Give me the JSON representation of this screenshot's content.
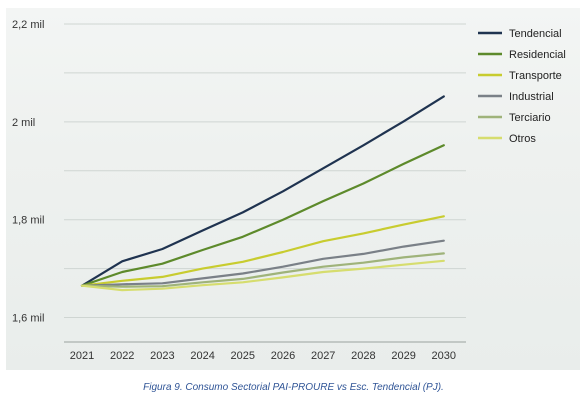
{
  "caption": "Figura 9. Consumo Sectorial PAI-PROURE vs Esc. Tendencial (PJ).",
  "chart_data": {
    "type": "line",
    "title": "",
    "xlabel": "",
    "ylabel": "",
    "x": [
      "2021",
      "2022",
      "2023",
      "2024",
      "2025",
      "2026",
      "2027",
      "2028",
      "2029",
      "2030"
    ],
    "ylim": [
      1550,
      2200
    ],
    "yticks": [
      {
        "value": 1600,
        "label": "1,6 mil"
      },
      {
        "value": 1800,
        "label": "1,8 mil"
      },
      {
        "value": 2000,
        "label": "2 mil"
      },
      {
        "value": 2200,
        "label": "2,2 mil"
      }
    ],
    "grid": true,
    "legend_position": "right",
    "series": [
      {
        "name": "Tendencial",
        "color": "#1f3350",
        "values": [
          1665,
          1715,
          1740,
          1778,
          1815,
          1858,
          1905,
          1952,
          2001,
          2052
        ]
      },
      {
        "name": "Residencial",
        "color": "#5d8a2b",
        "values": [
          1665,
          1693,
          1710,
          1738,
          1765,
          1800,
          1838,
          1874,
          1914,
          1952
        ]
      },
      {
        "name": "Transporte",
        "color": "#c8cc2f",
        "values": [
          1665,
          1675,
          1683,
          1700,
          1714,
          1734,
          1756,
          1772,
          1790,
          1807
        ]
      },
      {
        "name": "Industrial",
        "color": "#7a8087",
        "values": [
          1665,
          1668,
          1670,
          1680,
          1690,
          1704,
          1720,
          1730,
          1745,
          1757
        ]
      },
      {
        "name": "Terciario",
        "color": "#9fb37a",
        "values": [
          1665,
          1663,
          1664,
          1672,
          1679,
          1692,
          1704,
          1712,
          1723,
          1731
        ]
      },
      {
        "name": "Otros",
        "color": "#d6dd6e",
        "values": [
          1665,
          1656,
          1659,
          1666,
          1672,
          1682,
          1693,
          1700,
          1708,
          1716
        ]
      }
    ]
  }
}
